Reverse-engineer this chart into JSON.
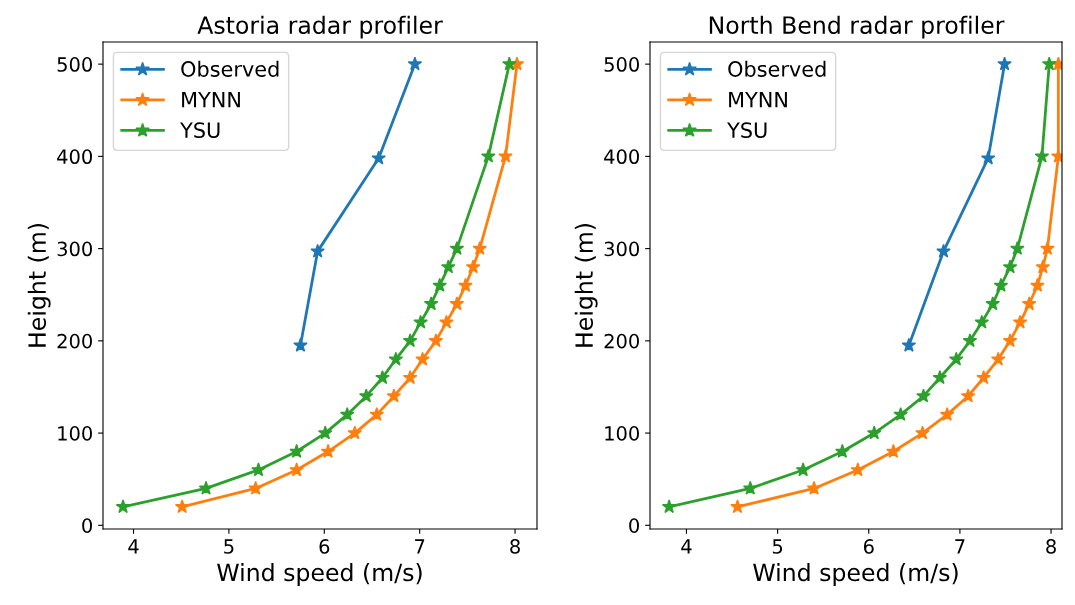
{
  "chart_data": [
    {
      "type": "line",
      "title": "Astoria radar profiler",
      "xlabel": "Wind speed (m/s)",
      "ylabel": "Height (m)",
      "xlim": [
        3.68,
        8.23
      ],
      "xticks": [
        4,
        5,
        6,
        7,
        8
      ],
      "ylim": [
        -4,
        524
      ],
      "yticks": [
        0,
        100,
        200,
        300,
        400,
        500
      ],
      "marker": "star",
      "line_style": "solid",
      "legend": "top left",
      "grid": false,
      "series": [
        {
          "name": "Observed",
          "color": "#1f77b4",
          "x": [
            5.75,
            5.93,
            6.57,
            6.95
          ],
          "values": [
            195,
            297,
            398,
            500
          ]
        },
        {
          "name": "MYNN",
          "color": "#ff7f0e",
          "x": [
            4.51,
            5.28,
            5.71,
            6.04,
            6.32,
            6.55,
            6.73,
            6.9,
            7.03,
            7.17,
            7.28,
            7.39,
            7.48,
            7.56,
            7.63,
            7.9,
            8.02
          ],
          "values": [
            20,
            40,
            60,
            80,
            100,
            120,
            140,
            160,
            180,
            200,
            220,
            240,
            260,
            280,
            300,
            400,
            500
          ]
        },
        {
          "name": "YSU",
          "color": "#2ca02c",
          "x": [
            3.89,
            4.76,
            5.31,
            5.71,
            6.01,
            6.24,
            6.44,
            6.61,
            6.75,
            6.9,
            7.01,
            7.12,
            7.21,
            7.3,
            7.39,
            7.72,
            7.94
          ],
          "values": [
            20,
            40,
            60,
            80,
            100,
            120,
            140,
            160,
            180,
            200,
            220,
            240,
            260,
            280,
            300,
            400,
            500
          ]
        }
      ]
    },
    {
      "type": "line",
      "title": "North Bend radar profiler",
      "xlabel": "Wind speed (m/s)",
      "ylabel": "Height (m)",
      "xlim": [
        3.6,
        8.12
      ],
      "xticks": [
        4,
        5,
        6,
        7,
        8
      ],
      "ylim": [
        -4,
        524
      ],
      "yticks": [
        0,
        100,
        200,
        300,
        400,
        500
      ],
      "marker": "star",
      "line_style": "solid",
      "legend": "top left",
      "grid": false,
      "series": [
        {
          "name": "Observed",
          "color": "#1f77b4",
          "x": [
            6.44,
            6.82,
            7.31,
            7.49
          ],
          "values": [
            195,
            297,
            398,
            500
          ]
        },
        {
          "name": "MYNN",
          "color": "#ff7f0e",
          "x": [
            4.56,
            5.4,
            5.88,
            6.27,
            6.59,
            6.86,
            7.09,
            7.26,
            7.42,
            7.55,
            7.66,
            7.76,
            7.85,
            7.91,
            7.96,
            8.08,
            8.08
          ],
          "values": [
            20,
            40,
            60,
            80,
            100,
            120,
            140,
            160,
            180,
            200,
            220,
            240,
            260,
            280,
            300,
            400,
            500
          ]
        },
        {
          "name": "YSU",
          "color": "#2ca02c",
          "x": [
            3.81,
            4.7,
            5.28,
            5.71,
            6.06,
            6.35,
            6.6,
            6.78,
            6.96,
            7.11,
            7.24,
            7.36,
            7.45,
            7.55,
            7.63,
            7.9,
            7.98
          ],
          "values": [
            20,
            40,
            60,
            80,
            100,
            120,
            140,
            160,
            180,
            200,
            220,
            240,
            260,
            280,
            300,
            400,
            500
          ]
        }
      ]
    }
  ]
}
